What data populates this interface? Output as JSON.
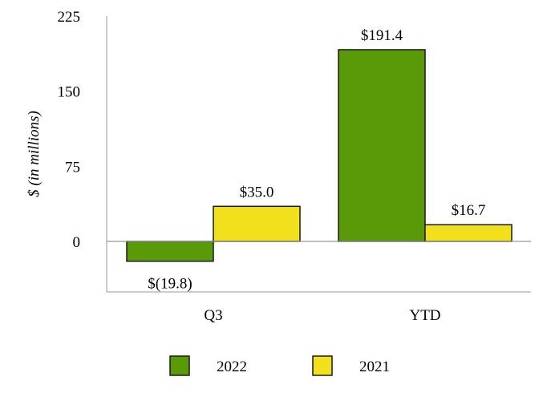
{
  "chart_data": {
    "type": "bar",
    "categories": [
      "Q3",
      "YTD"
    ],
    "series": [
      {
        "name": "2022",
        "color": "#5a9a08",
        "values": [
          -19.8,
          191.4
        ],
        "labels": [
          "$(19.8)",
          "$191.4"
        ]
      },
      {
        "name": "2021",
        "color": "#f2e01c",
        "values": [
          35.0,
          16.7
        ],
        "labels": [
          "$35.0",
          "$16.7"
        ]
      }
    ],
    "ylabel": "$ (in millions)",
    "ylim": [
      -50,
      225
    ],
    "yticks": [
      0,
      75,
      150,
      225
    ],
    "grid": false,
    "legend_position": "bottom"
  }
}
